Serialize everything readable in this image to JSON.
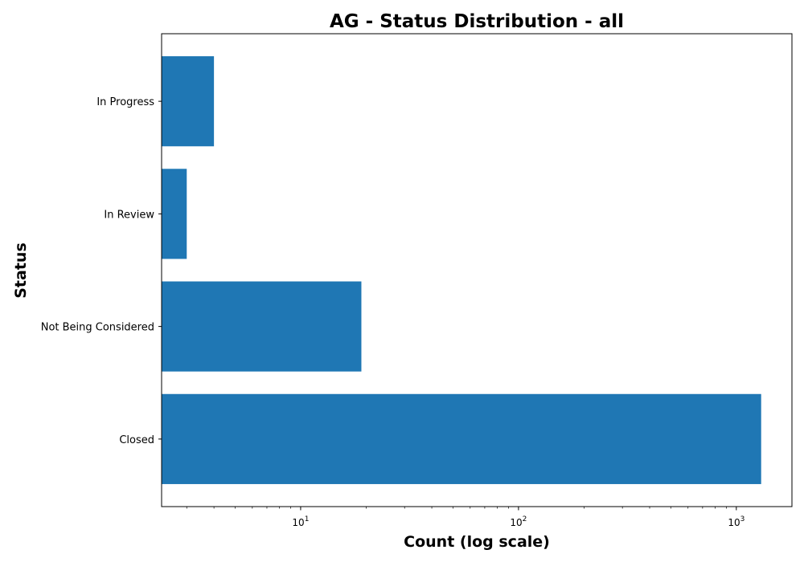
{
  "chart_data": {
    "type": "bar",
    "orientation": "horizontal",
    "title": "AG - Status Distribution - all",
    "xlabel": "Count (log scale)",
    "ylabel": "Status",
    "x_scale": "log",
    "xlim": [
      2.3,
      1800
    ],
    "categories": [
      "Closed",
      "Not Being Considered",
      "In Review",
      "In Progress"
    ],
    "values": [
      1300,
      19,
      3,
      4
    ],
    "x_ticks": [
      {
        "base": "10",
        "exp": "1",
        "value": 10
      },
      {
        "base": "10",
        "exp": "2",
        "value": 100
      },
      {
        "base": "10",
        "exp": "3",
        "value": 1000
      }
    ],
    "bar_color": "#1f77b4",
    "grid": false,
    "legend": false
  }
}
